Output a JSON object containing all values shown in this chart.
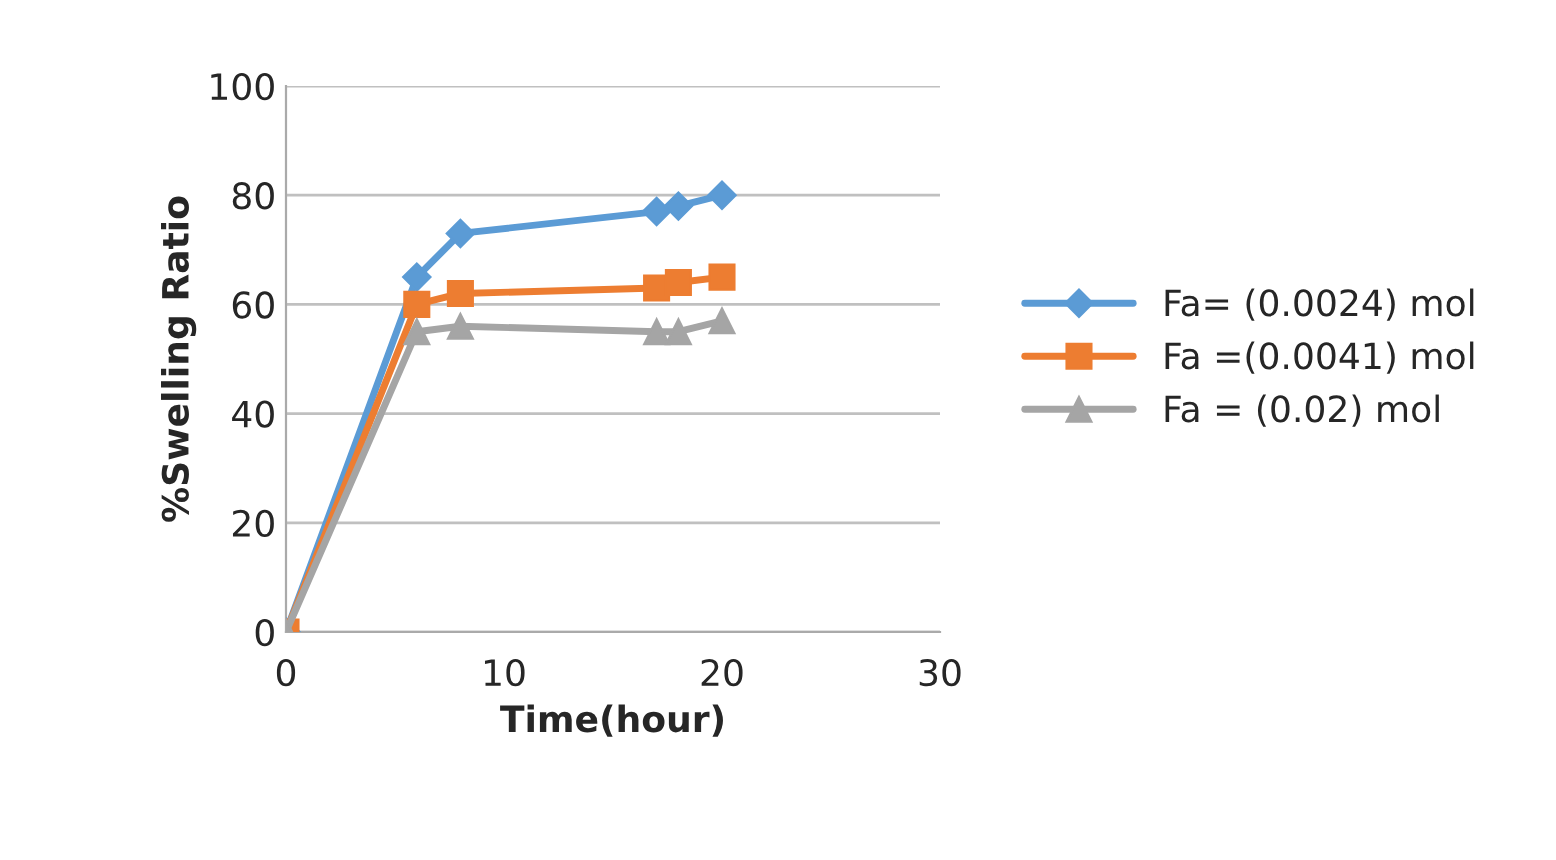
{
  "chart_data": {
    "type": "line",
    "xlabel": "Time(hour)",
    "ylabel": "%Swelling Ratio",
    "x": [
      0,
      6,
      8,
      17,
      18,
      20
    ],
    "series": [
      {
        "name": "Fa= (0.0024) mol",
        "color": "#5b9bd5",
        "marker": "diamond",
        "values": [
          0,
          65,
          73,
          77,
          78,
          80
        ]
      },
      {
        "name": "Fa =(0.0041) mol",
        "color": "#ed7d31",
        "marker": "square",
        "values": [
          0,
          60,
          62,
          63,
          64,
          65
        ]
      },
      {
        "name": "Fa = (0.02) mol",
        "color": "#a5a5a5",
        "marker": "triangle",
        "values": [
          0,
          55,
          56,
          55,
          55,
          57
        ]
      }
    ],
    "xlim": [
      0,
      30
    ],
    "xticks": [
      0,
      10,
      20,
      30
    ],
    "ylim": [
      0,
      100
    ],
    "yticks": [
      0,
      20,
      40,
      60,
      80,
      100
    ],
    "grid": "y",
    "legend": "right",
    "line_style": "solid"
  }
}
